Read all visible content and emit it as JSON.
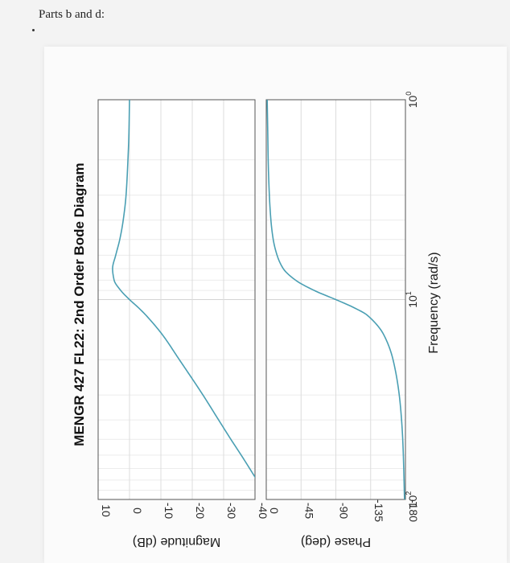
{
  "note": {
    "text": "Parts b and d:"
  },
  "chart_data": {
    "type": "line",
    "title": "MENGR 427 FL22: 2nd Order Bode Diagram",
    "xlabel": "Frequency  (rad/s)",
    "x_scale": "log",
    "xlim": [
      1,
      100
    ],
    "x_tick_labels": [
      {
        "base": "10",
        "exp": "0"
      },
      {
        "base": "10",
        "exp": "1"
      },
      {
        "base": "10",
        "exp": "2"
      }
    ],
    "series_color": "#4a9fb3",
    "grid": true,
    "magnitude": {
      "ylabel": "Magnitude (dB)",
      "ylim": [
        -40,
        10
      ],
      "y_ticks": [
        "10",
        "0",
        "-10",
        "-20",
        "-30",
        "-40"
      ],
      "x": [
        1,
        1.5,
        2,
        3,
        4,
        5,
        6,
        7,
        8,
        9,
        10,
        11,
        12,
        15,
        20,
        30,
        40,
        50,
        60,
        70,
        80,
        90,
        100
      ],
      "y": [
        0,
        0.2,
        0.5,
        1.1,
        2.0,
        3.1,
        4.4,
        5.4,
        4.9,
        2.8,
        0,
        -2.9,
        -5.3,
        -10.5,
        -15.9,
        -23.4,
        -28.4,
        -32.3,
        -35.6,
        -38.3,
        -40.6,
        -42.7,
        -44.5
      ]
    },
    "phase": {
      "ylabel": "Phase (deg)",
      "ylim": [
        -180,
        0
      ],
      "y_ticks": [
        "0",
        "-45",
        "-90",
        "-135",
        "-180"
      ],
      "x": [
        1,
        1.5,
        2,
        3,
        4,
        5,
        6,
        7,
        8,
        9,
        10,
        11,
        12,
        15,
        20,
        30,
        40,
        50,
        60,
        70,
        80,
        90,
        100
      ],
      "y": [
        -1.2,
        -2,
        -2.5,
        -4,
        -6,
        -9,
        -14,
        -22,
        -38,
        -62,
        -90,
        -114,
        -131,
        -152,
        -164,
        -172,
        -175,
        -176.5,
        -177.3,
        -177.8,
        -178.2,
        -178.5,
        -178.8
      ]
    }
  }
}
